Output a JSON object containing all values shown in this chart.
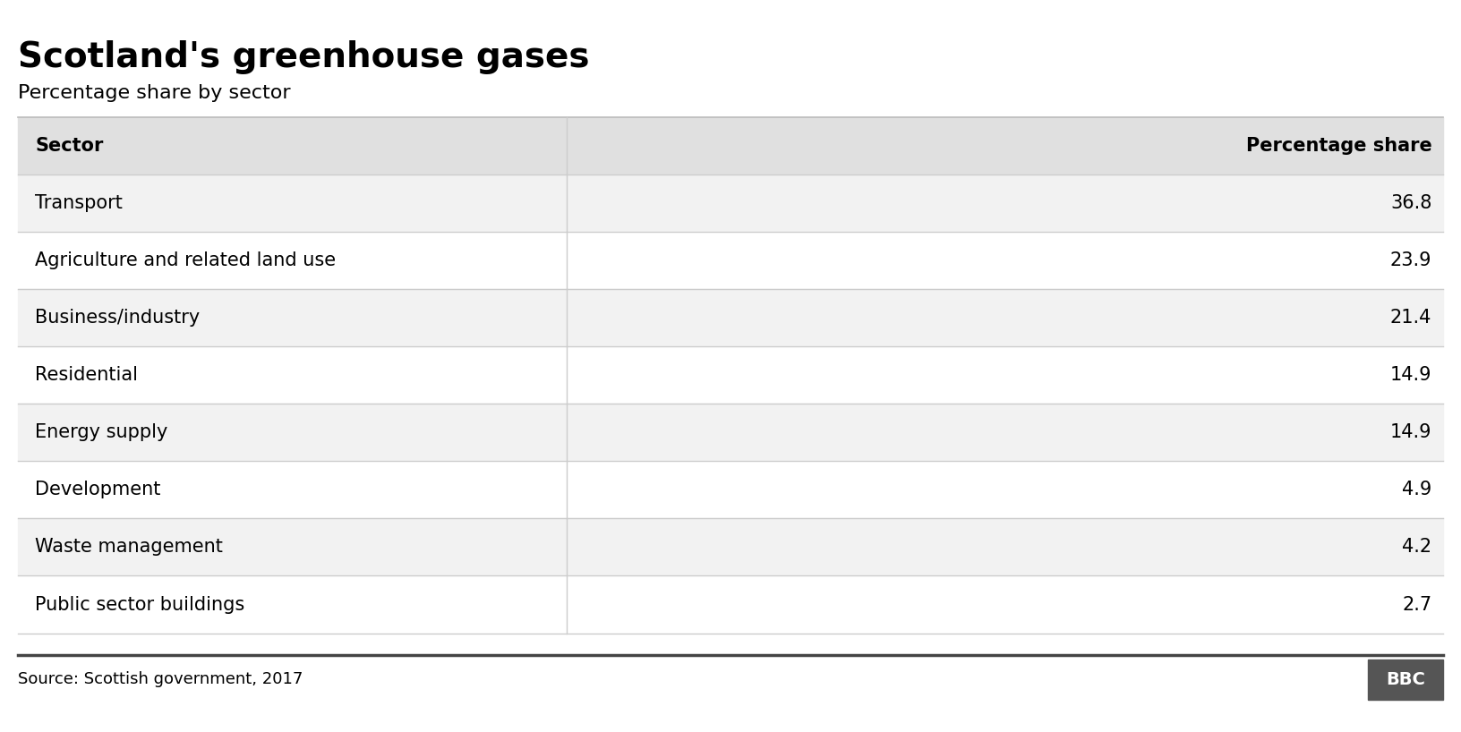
{
  "title": "Scotland's greenhouse gases",
  "subtitle": "Percentage share by sector",
  "col1_header": "Sector",
  "col2_header": "Percentage share",
  "rows": [
    [
      "Transport",
      "36.8"
    ],
    [
      "Agriculture and related land use",
      "23.9"
    ],
    [
      "Business/industry",
      "21.4"
    ],
    [
      "Residential",
      "14.9"
    ],
    [
      "Energy supply",
      "14.9"
    ],
    [
      "Development",
      "4.9"
    ],
    [
      "Waste management",
      "4.2"
    ],
    [
      "Public sector buildings",
      "2.7"
    ]
  ],
  "source_text": "Source: Scottish government, 2017",
  "bbc_text": "BBC",
  "bg_color": "#ffffff",
  "header_bg_color": "#e0e0e0",
  "row_bg_odd": "#f2f2f2",
  "row_bg_even": "#ffffff",
  "divider_color": "#cccccc",
  "text_color": "#000000",
  "title_fontsize": 28,
  "subtitle_fontsize": 16,
  "header_fontsize": 15,
  "cell_fontsize": 15,
  "source_fontsize": 13,
  "col_split": 0.385,
  "bbc_bg_color": "#555555",
  "bbc_text_color": "#ffffff",
  "footer_line_color": "#444444",
  "top_line_color": "#bbbbbb"
}
